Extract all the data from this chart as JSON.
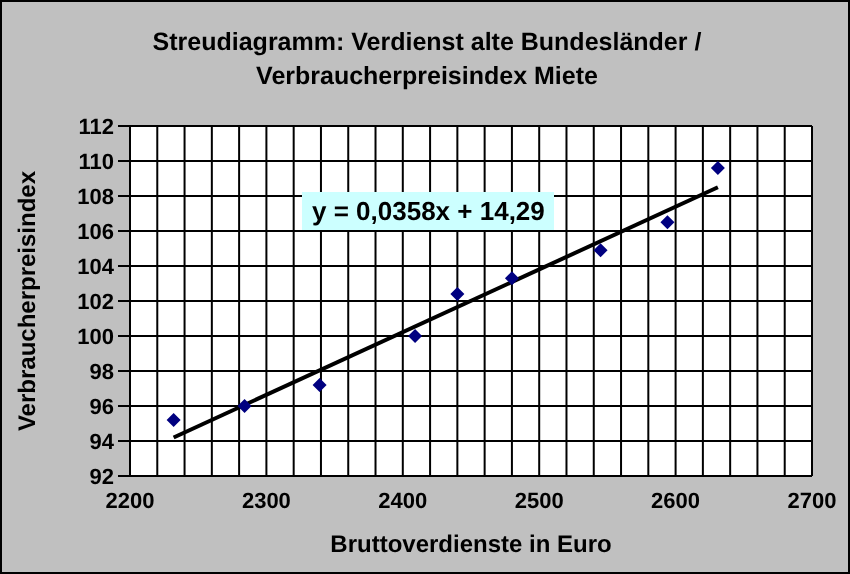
{
  "chart_data": {
    "type": "scatter",
    "title": "Streudiagramm: Verdienst alte Bundesländer / Verbraucherpreisindex Miete",
    "xlabel": "Bruttoverdienste in Euro",
    "ylabel": "Verbraucherpreisindex",
    "annotations": [
      "y = 0,0358x + 14,29"
    ],
    "series": [
      {
        "color": "#000080",
        "x": [
          2232,
          2284,
          2339,
          2409,
          2440,
          2480,
          2545,
          2594,
          2631
        ],
        "values": [
          95.2,
          96.0,
          97.2,
          100.0,
          102.4,
          103.3,
          104.9,
          106.5,
          109.6
        ]
      },
      {
        "type": "line",
        "color": "#000000",
        "marker": "none",
        "x": [
          2232,
          2631
        ],
        "values": [
          94.2,
          108.5
        ]
      }
    ],
    "marker": "diamond",
    "grid": true,
    "legend": false,
    "xlim": [
      2200,
      2700
    ],
    "xticks": [
      2200,
      {
        "value": 2220,
        "label": null
      },
      {
        "value": 2240,
        "label": null
      },
      {
        "value": 2260,
        "label": null
      },
      {
        "value": 2280,
        "label": null
      },
      2300,
      {
        "value": 2320,
        "label": null
      },
      {
        "value": 2340,
        "label": null
      },
      {
        "value": 2360,
        "label": null
      },
      {
        "value": 2380,
        "label": null
      },
      2400,
      {
        "value": 2420,
        "label": null
      },
      {
        "value": 2440,
        "label": null
      },
      {
        "value": 2460,
        "label": null
      },
      {
        "value": 2480,
        "label": null
      },
      2500,
      {
        "value": 2520,
        "label": null
      },
      {
        "value": 2540,
        "label": null
      },
      {
        "value": 2560,
        "label": null
      },
      {
        "value": 2580,
        "label": null
      },
      2600,
      {
        "value": 2620,
        "label": null
      },
      {
        "value": 2640,
        "label": null
      },
      {
        "value": 2660,
        "label": null
      },
      {
        "value": 2680,
        "label": null
      },
      2700
    ],
    "ylim": [
      92,
      112
    ],
    "yticks": [
      92,
      94,
      96,
      98,
      100,
      102,
      104,
      106,
      108,
      110,
      112
    ]
  }
}
